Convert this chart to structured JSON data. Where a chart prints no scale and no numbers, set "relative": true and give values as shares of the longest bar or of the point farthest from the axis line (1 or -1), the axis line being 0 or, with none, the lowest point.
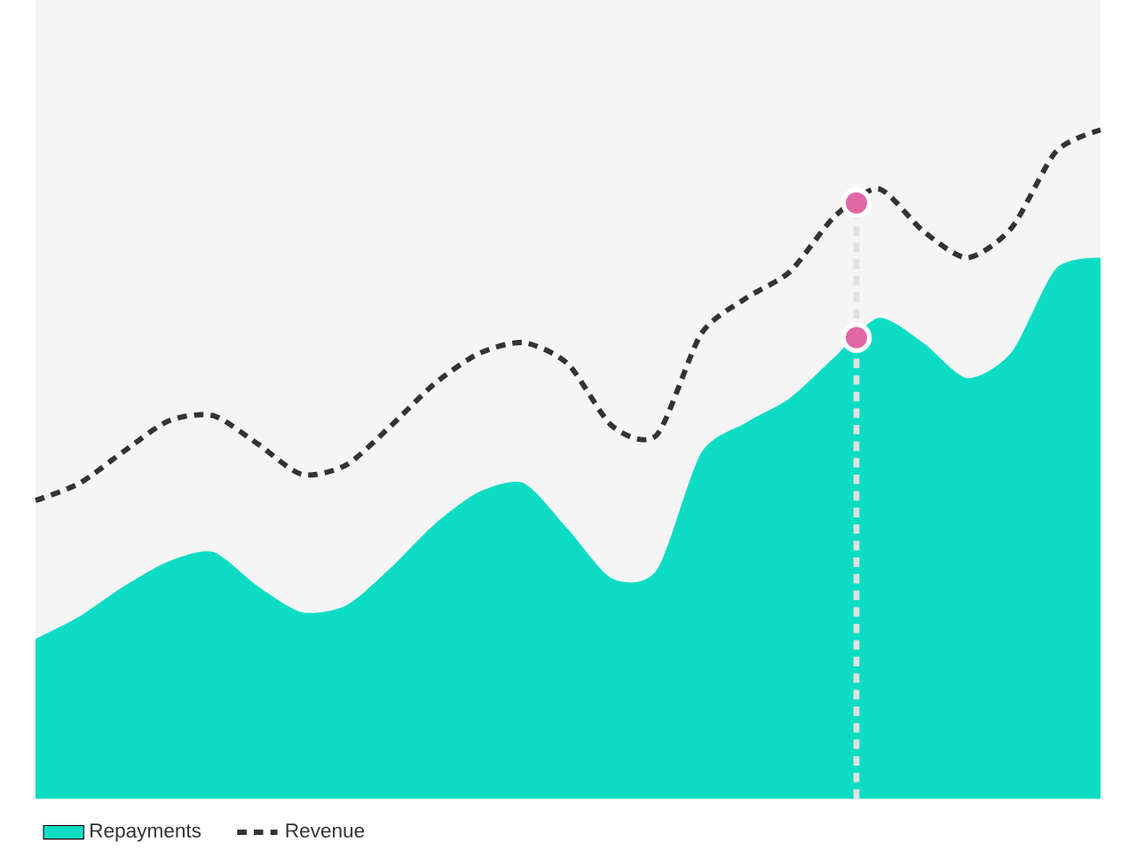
{
  "chart_data": {
    "type": "area",
    "relative": true,
    "legend": "bottom left",
    "categories": [
      null,
      null,
      null,
      null,
      null,
      null,
      null,
      null,
      null,
      null,
      null,
      null,
      null,
      null,
      null,
      null,
      null,
      null,
      null,
      null,
      null,
      null,
      null,
      null,
      null
    ],
    "series": [
      {
        "name": "Repayments",
        "color": "#0ddcc4",
        "values": [
          0.239,
          0.273,
          0.318,
          0.355,
          0.369,
          0.318,
          0.279,
          0.289,
          0.345,
          0.411,
          0.459,
          0.472,
          0.403,
          0.329,
          0.342,
          0.517,
          0.562,
          0.599,
          0.66,
          0.719,
          0.682,
          0.629,
          0.668,
          0.793,
          0.809
        ]
      },
      {
        "name": "Revenue",
        "type": "line",
        "color": "#333333",
        "line_style": "dashed",
        "values": [
          0.446,
          0.472,
          0.52,
          0.565,
          0.573,
          0.531,
          0.485,
          0.499,
          0.557,
          0.621,
          0.666,
          0.682,
          0.65,
          0.557,
          0.544,
          0.695,
          0.748,
          0.788,
          0.87,
          0.912,
          0.849,
          0.809,
          0.854,
          0.968,
          1
        ]
      }
    ]
  }
}
